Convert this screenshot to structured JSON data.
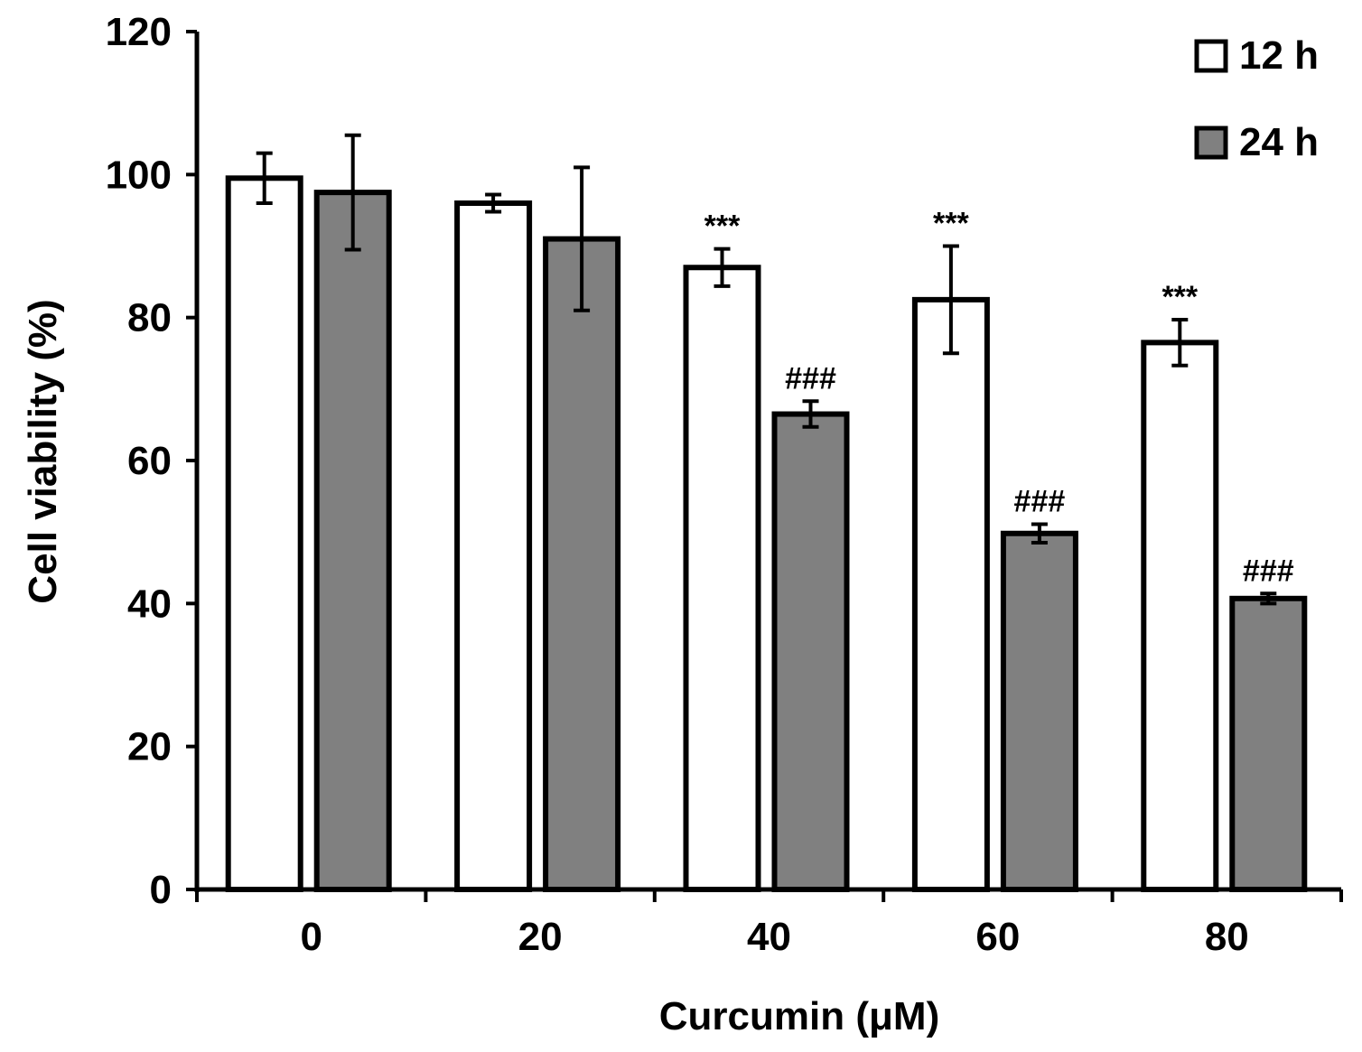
{
  "chart_data": {
    "type": "bar",
    "categories": [
      "0",
      "20",
      "40",
      "60",
      "80"
    ],
    "series": [
      {
        "name": "12 h",
        "color": "#ffffff",
        "values": [
          99.5,
          96,
          87,
          82.5,
          76.5
        ],
        "errors": [
          3.5,
          1.2,
          2.6,
          7.5,
          3.2
        ],
        "annotations": [
          "",
          "",
          "***",
          "***",
          "***"
        ]
      },
      {
        "name": "24 h",
        "color": "#808080",
        "values": [
          97.5,
          91,
          66.5,
          49.8,
          40.7
        ],
        "errors": [
          8,
          10,
          1.8,
          1.3,
          0.7
        ],
        "annotations": [
          "",
          "",
          "###",
          "###",
          "###"
        ]
      }
    ],
    "title": "",
    "xlabel": "Curcumin (μM)",
    "ylabel": "Cell viability (%)",
    "ylim": [
      0,
      120
    ],
    "yticks": [
      0,
      20,
      40,
      60,
      80,
      100,
      120
    ],
    "grid": false,
    "legend_position": "top-right"
  }
}
